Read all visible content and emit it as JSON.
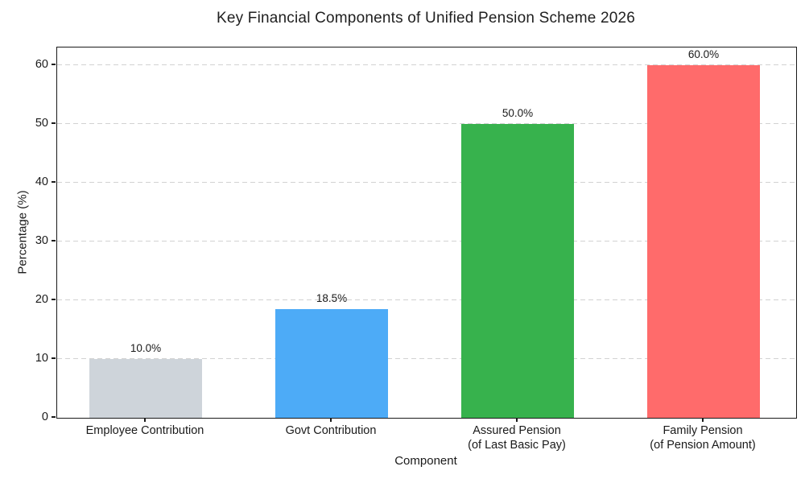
{
  "chart_data": {
    "type": "bar",
    "title": "Key Financial Components of Unified Pension Scheme 2026",
    "xlabel": "Component",
    "ylabel": "Percentage (%)",
    "categories": [
      "Employee Contribution",
      "Govt Contribution",
      "Assured Pension\n(of Last Basic Pay)",
      "Family Pension\n(of Pension Amount)"
    ],
    "values": [
      10.0,
      18.5,
      50.0,
      60.0
    ],
    "bar_labels": [
      "10.0%",
      "18.5%",
      "50.0%",
      "60.0%"
    ],
    "bar_colors": [
      "#CED4DA",
      "#4DABF7",
      "#37B24D",
      "#FF6B6B"
    ],
    "ytick_values": [
      0,
      10,
      20,
      30,
      40,
      50,
      60
    ],
    "ylim": [
      0,
      63
    ],
    "grid": {
      "axis": "y",
      "style": "dashed",
      "color": "#d2d2d2"
    },
    "legend_position": "none",
    "colors": {
      "spine": "#1a1a1a",
      "text": "#1a1a1a",
      "background": "#ffffff"
    }
  }
}
